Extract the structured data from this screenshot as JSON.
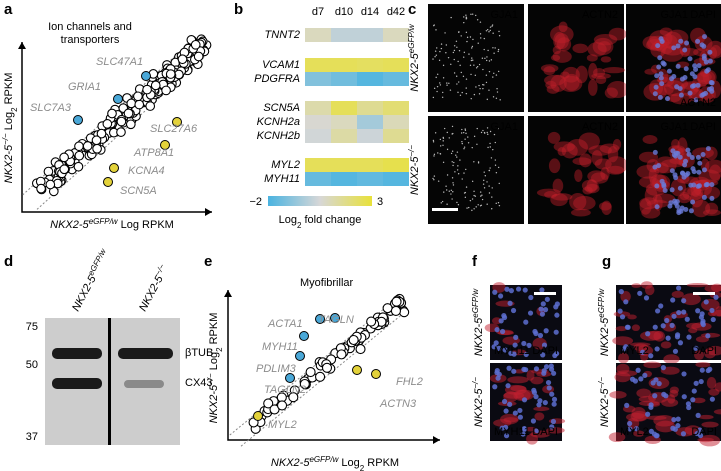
{
  "panel_letters": [
    "a",
    "b",
    "c",
    "d",
    "e",
    "f",
    "g"
  ],
  "panel_a": {
    "title": [
      "Ion channels and",
      "transporters"
    ],
    "genes": [
      "SLC47A1",
      "GRIA1",
      "SLC7A3",
      "SLC27A6",
      "ATP8A1",
      "KCNA4",
      "SCN5A"
    ],
    "y_label": {
      "name": "NKX2-5",
      "sup": "−/−",
      "text": " Log",
      "sub": "2",
      "tail": " RPKM"
    },
    "x_label": {
      "name": "NKX2-5",
      "sup": "eGFP/w",
      "text": " Log RPKM"
    }
  },
  "panel_b": {
    "columns": [
      "d7",
      "d10",
      "d14",
      "d42"
    ],
    "rows": [
      {
        "gene": "TNNT2",
        "values": [
          0.9,
          0.1,
          0.1,
          0.9
        ]
      },
      {
        "gene": "VCAM1",
        "values": [
          2.5,
          2.5,
          2.4,
          2.5
        ]
      },
      {
        "gene": "PDGFRA",
        "values": [
          -1.0,
          -1.3,
          -1.8,
          -1.5
        ]
      },
      {
        "gene": "SCN5A",
        "values": [
          1.2,
          2.5,
          1.6,
          2.1
        ]
      },
      {
        "gene": "KCNH2a",
        "values": [
          0.6,
          0.9,
          -0.4,
          1.0
        ]
      },
      {
        "gene": "KCNH2b",
        "values": [
          0.4,
          1.3,
          0.3,
          1.6
        ]
      },
      {
        "gene": "MYL2",
        "values": [
          2.5,
          2.5,
          2.5,
          2.7
        ]
      },
      {
        "gene": "MYH11",
        "values": [
          -1.5,
          -1.8,
          -1.6,
          -1.8
        ]
      }
    ],
    "scale_min": "−2",
    "scale_max": "3",
    "scale_label": {
      "text": "Log",
      "sub": "2",
      "tail": " fold change"
    }
  },
  "panel_c": {
    "row_labels": [
      {
        "name": "NKX2-5",
        "sup": "eGFP/w"
      },
      {
        "name": "NKX2-5",
        "sup": "−/−"
      }
    ],
    "image_labels": [
      [
        [
          "GJA1"
        ],
        [
          "ACTN2"
        ],
        [
          "GJA1",
          "DAPI",
          "ACTN2"
        ]
      ],
      [
        [
          "GJA1"
        ],
        [
          "ACTN2"
        ],
        [
          "GJA1",
          "DAPI"
        ]
      ]
    ]
  },
  "panel_d": {
    "column_labels": [
      {
        "name": "NKX2-5",
        "sup": "eGFP/w"
      },
      {
        "name": "NKX2-5",
        "sup": "−/−"
      }
    ],
    "markers": [
      "75",
      "50",
      "37"
    ],
    "bands": [
      "βTUB",
      "CX43"
    ]
  },
  "panel_e": {
    "title": "Myofibrillar",
    "genes": [
      "ACTA1",
      "TAGLN",
      "MYH11",
      "PDLIM3",
      "TAGLN2",
      "FHL2",
      "ACTN3",
      "MYL2"
    ],
    "y_label": {
      "name": "NKX2-5",
      "sup": "−/−",
      "text": " Log",
      "sub": "2",
      "tail": " RPKM"
    },
    "x_label": {
      "name": "NKX2-5",
      "sup": "eGFP/w",
      "text": " Log",
      "sub": "2",
      "tail": " RPKM"
    }
  },
  "panel_f": {
    "row_labels": [
      {
        "name": "NKX2-5",
        "sup": "eGFP/w"
      },
      {
        "name": "NKX2-5",
        "sup": "−/−"
      }
    ],
    "stains": [
      [
        "MYH11",
        "DAPI"
      ],
      [
        "MYH11",
        "DAPI"
      ]
    ]
  },
  "panel_g": {
    "row_labels": [
      {
        "name": "NKX2-5",
        "sup": "eGFP/w"
      },
      {
        "name": "NKX2-5",
        "sup": "−/−"
      }
    ],
    "stains": [
      [
        "MYL2",
        "DAPI"
      ],
      [
        "MYL2",
        "DAPI"
      ]
    ]
  }
}
